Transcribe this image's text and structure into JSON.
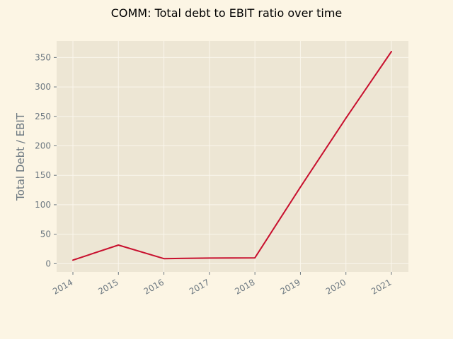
{
  "chart_data": {
    "type": "line",
    "title": "COMM: Total debt to EBIT ratio over time",
    "xlabel": "",
    "ylabel": "Total Debt / EBIT",
    "x": [
      "2014",
      "2015",
      "2016",
      "2017",
      "2018",
      "2019",
      "2020",
      "2021"
    ],
    "series": [
      {
        "values": [
          6,
          31.5,
          8.5,
          9.5,
          9.8,
          130,
          247,
          360
        ]
      }
    ],
    "yticks": [
      0,
      50,
      100,
      150,
      200,
      250,
      300,
      350
    ],
    "ylim": [
      -14,
      378
    ],
    "grid": true,
    "legend": "none",
    "colors": {
      "line": "#c8102e",
      "plot_background": "#ede6d4",
      "page_background": "#fcf5e4",
      "grid": "#faf6ec",
      "tick_text": "#6b7780"
    }
  }
}
